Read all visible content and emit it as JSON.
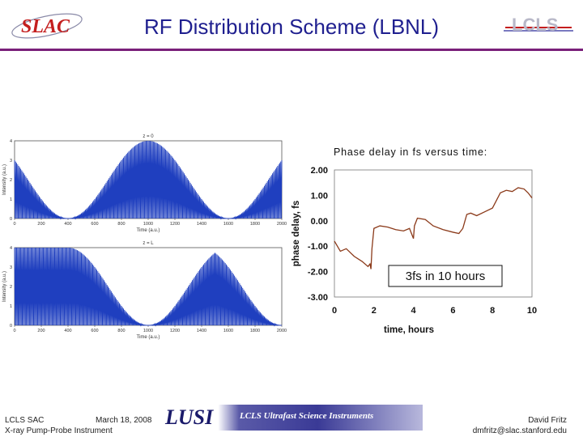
{
  "header": {
    "title": "RF Distribution Scheme (LBNL)",
    "left_logo": "SLAC",
    "right_logo": "LCLS",
    "accent_color": "#7a1f7a",
    "title_color": "#1f1f8f"
  },
  "left_panels": [
    {
      "top_label": "z = 0",
      "ylabel": "Intensity (a.u.)",
      "xlabel": "Time (a.u.)",
      "x_ticks": [
        "0",
        "200",
        "400",
        "600",
        "800",
        "1000",
        "1200",
        "1400",
        "1600",
        "1800",
        "2000"
      ],
      "y_ticks": [
        "0",
        "1",
        "2",
        "3",
        "4"
      ],
      "trough_positions": [
        400,
        1600
      ]
    },
    {
      "top_label": "z = L",
      "ylabel": "Intensity (a.u.)",
      "xlabel": "Time (a.u.)",
      "x_ticks": [
        "0",
        "200",
        "400",
        "600",
        "800",
        "1000",
        "1200",
        "1400",
        "1600",
        "1800",
        "2000"
      ],
      "y_ticks": [
        "0",
        "1",
        "2",
        "3",
        "4"
      ],
      "trough_positions": [
        1000,
        2000
      ]
    }
  ],
  "chart_data": {
    "type": "line",
    "title": "Phase delay in fs versus time:",
    "xlabel": "time, hours",
    "ylabel": "phase delay, fs",
    "xlim": [
      0,
      10
    ],
    "ylim": [
      -3,
      2
    ],
    "x_ticks": [
      "0",
      "2",
      "4",
      "6",
      "8",
      "10"
    ],
    "y_ticks": [
      "2.00",
      "1.00",
      "0.00",
      "-1.00",
      "-2.00",
      "-3.00"
    ],
    "annotation": "3fs in 10 hours",
    "series": [
      {
        "color": "#8b3a1a",
        "x": [
          0,
          0.3,
          0.6,
          1.0,
          1.4,
          1.7,
          1.8,
          1.85,
          1.9,
          2.0,
          2.3,
          2.7,
          3.1,
          3.5,
          3.8,
          4.0,
          4.05,
          4.2,
          4.6,
          5.0,
          5.5,
          6.0,
          6.3,
          6.5,
          6.7,
          6.9,
          7.2,
          7.6,
          8.0,
          8.2,
          8.4,
          8.7,
          9.0,
          9.3,
          9.6,
          9.8,
          10.0
        ],
        "y": [
          -0.8,
          -1.2,
          -1.1,
          -1.4,
          -1.6,
          -1.8,
          -1.7,
          -1.9,
          -1.1,
          -0.3,
          -0.2,
          -0.25,
          -0.35,
          -0.4,
          -0.3,
          -0.7,
          -0.2,
          0.1,
          0.05,
          -0.2,
          -0.35,
          -0.45,
          -0.5,
          -0.3,
          0.25,
          0.3,
          0.2,
          0.35,
          0.5,
          0.8,
          1.1,
          1.2,
          1.15,
          1.3,
          1.25,
          1.1,
          0.9
        ]
      }
    ]
  },
  "footer": {
    "org": "LCLS SAC",
    "date": "March 18, 2008",
    "subtitle": "X-ray Pump-Probe Instrument",
    "banner_title": "LUSI",
    "banner_subtitle": "LCLS Ultrafast Science Instruments",
    "author": "David Fritz",
    "email": "dmfritz@slac.stanford.edu"
  }
}
